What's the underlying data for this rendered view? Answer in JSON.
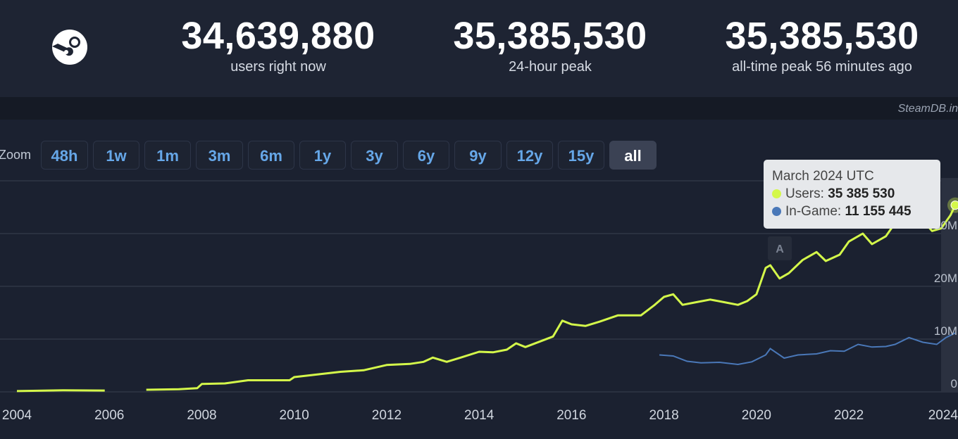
{
  "header": {
    "stats": [
      {
        "value": "34,639,880",
        "label": "users right now"
      },
      {
        "value": "35,385,530",
        "label": "24-hour peak"
      },
      {
        "value": "35,385,530",
        "label": "all-time peak 56 minutes ago"
      }
    ],
    "logo_icon": "steam-logo-icon"
  },
  "credit": "SteamDB.in",
  "zoom": {
    "label": "Zoom",
    "buttons": [
      "48h",
      "1w",
      "1m",
      "3m",
      "6m",
      "1y",
      "3y",
      "6y",
      "9y",
      "12y",
      "15y",
      "all"
    ],
    "active": "all"
  },
  "tooltip": {
    "title": "March 2024 UTC",
    "users_label": "Users:",
    "users_value": "35 385 530",
    "ingame_label": "In-Game:",
    "ingame_value": "11 155 445"
  },
  "annotation_flag": "A",
  "colors": {
    "background": "#1b2130",
    "users": "#d4f84a",
    "ingame": "#4a78b8",
    "button_text": "#66a7e8"
  },
  "chart_data": {
    "type": "line",
    "x_ticks": [
      "2004",
      "2006",
      "2008",
      "2010",
      "2012",
      "2014",
      "2016",
      "2018",
      "2020",
      "2022",
      "2024"
    ],
    "y_ticks": [
      "0",
      "10M",
      "20M",
      "30M"
    ],
    "ylim": [
      0,
      40000000
    ],
    "xlim": [
      2004.0,
      2024.3
    ],
    "grid": true,
    "legend": "tooltip",
    "series": [
      {
        "name": "Users",
        "color": "#d4f84a",
        "x": [
          2004.0,
          2005.0,
          2005.9,
          null,
          2006.8,
          2007.5,
          2007.9,
          2008.0,
          2008.5,
          2009.0,
          2009.5,
          2009.9,
          2010.0,
          2010.5,
          2011.0,
          2011.5,
          2012.0,
          2012.5,
          2012.8,
          2013.0,
          2013.3,
          2013.6,
          2014.0,
          2014.3,
          2014.6,
          2014.8,
          2015.0,
          2015.3,
          2015.6,
          2015.8,
          2016.0,
          2016.3,
          2016.6,
          2017.0,
          2017.5,
          2017.8,
          2018.0,
          2018.2,
          2018.4,
          2018.7,
          2019.0,
          2019.3,
          2019.6,
          2019.8,
          2020.0,
          2020.2,
          2020.3,
          2020.5,
          2020.7,
          2021.0,
          2021.3,
          2021.5,
          2021.8,
          2022.0,
          2022.3,
          2022.5,
          2022.8,
          2023.0,
          2023.3,
          2023.6,
          2023.8,
          2024.0,
          2024.2,
          2024.3
        ],
        "y": [
          150000,
          300000,
          250000,
          null,
          400000,
          500000,
          700000,
          1500000,
          1600000,
          2200000,
          2200000,
          2200000,
          2800000,
          3300000,
          3800000,
          4100000,
          5100000,
          5300000,
          5700000,
          6500000,
          5700000,
          6500000,
          7600000,
          7500000,
          8000000,
          9200000,
          8500000,
          9500000,
          10500000,
          13500000,
          12800000,
          12500000,
          13300000,
          14500000,
          14500000,
          16500000,
          18000000,
          18500000,
          16500000,
          17000000,
          17500000,
          17000000,
          16500000,
          17200000,
          18500000,
          23500000,
          24000000,
          21500000,
          22500000,
          25000000,
          26500000,
          24800000,
          26000000,
          28500000,
          30000000,
          28000000,
          29500000,
          32000000,
          33500000,
          32500000,
          30500000,
          31000000,
          33500000,
          35385530
        ]
      },
      {
        "name": "In-Game",
        "color": "#4a78b8",
        "x": [
          2017.9,
          2018.2,
          2018.5,
          2018.8,
          2019.2,
          2019.6,
          2019.9,
          2020.2,
          2020.3,
          2020.6,
          2020.9,
          2021.3,
          2021.6,
          2021.9,
          2022.2,
          2022.5,
          2022.8,
          2023.0,
          2023.3,
          2023.6,
          2023.9,
          2024.1,
          2024.3
        ],
        "y": [
          7000000,
          6800000,
          5800000,
          5500000,
          5600000,
          5200000,
          5700000,
          7000000,
          8200000,
          6400000,
          7000000,
          7200000,
          7800000,
          7700000,
          9000000,
          8500000,
          8600000,
          9000000,
          10300000,
          9400000,
          9000000,
          10300000,
          11155445
        ]
      }
    ]
  }
}
